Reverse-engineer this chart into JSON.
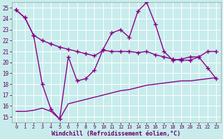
{
  "xlabel": "Windchill (Refroidissement éolien,°C)",
  "bg_color": "#c8ecec",
  "grid_color": "#aacccc",
  "line_color": "#880088",
  "marker": "+",
  "markersize": 4,
  "linewidth": 1.0,
  "xlim": [
    -0.5,
    23.5
  ],
  "ylim": [
    14.5,
    25.5
  ],
  "yticks": [
    15,
    16,
    17,
    18,
    19,
    20,
    21,
    22,
    23,
    24,
    25
  ],
  "xticks": [
    0,
    1,
    2,
    3,
    4,
    5,
    6,
    7,
    8,
    9,
    10,
    11,
    12,
    13,
    14,
    15,
    16,
    17,
    18,
    19,
    20,
    21,
    22,
    23
  ],
  "line1_x": [
    0,
    1,
    2,
    3,
    4,
    5,
    6,
    7,
    8,
    9,
    10,
    11,
    12,
    13,
    14,
    15,
    16,
    17,
    18,
    19,
    20,
    21,
    22,
    23
  ],
  "line1_y": [
    24.8,
    24.1,
    22.5,
    22.0,
    21.7,
    21.4,
    21.2,
    21.0,
    20.8,
    20.6,
    21.1,
    21.0,
    21.0,
    21.0,
    20.9,
    21.0,
    20.7,
    20.5,
    20.3,
    20.2,
    20.2,
    20.5,
    21.0,
    21.0
  ],
  "line2_x": [
    0,
    1,
    2,
    3,
    4,
    5,
    6,
    7,
    8,
    9,
    10,
    11,
    12,
    13,
    14,
    15,
    16,
    17,
    18,
    19,
    20,
    21,
    22,
    23
  ],
  "line2_y": [
    24.8,
    24.1,
    22.5,
    18.0,
    15.7,
    14.8,
    20.5,
    18.3,
    18.5,
    19.3,
    21.2,
    22.7,
    23.0,
    22.3,
    24.7,
    25.5,
    23.5,
    21.0,
    20.2,
    20.3,
    20.5,
    20.5,
    19.5,
    18.5
  ],
  "line3_x": [
    0,
    1,
    2,
    3,
    4,
    5,
    6,
    7,
    8,
    9,
    10,
    11,
    12,
    13,
    14,
    15,
    16,
    17,
    18,
    19,
    20,
    21,
    22,
    23
  ],
  "line3_y": [
    15.5,
    15.5,
    15.6,
    15.8,
    15.5,
    14.8,
    16.2,
    16.4,
    16.6,
    16.8,
    17.0,
    17.2,
    17.4,
    17.5,
    17.7,
    17.9,
    18.0,
    18.1,
    18.2,
    18.3,
    18.3,
    18.4,
    18.5,
    18.6
  ],
  "xlabel_color": "#660066",
  "xlabel_fontsize": 6.0,
  "tick_fontsize": 5.5,
  "xtick_fontsize": 5.0
}
